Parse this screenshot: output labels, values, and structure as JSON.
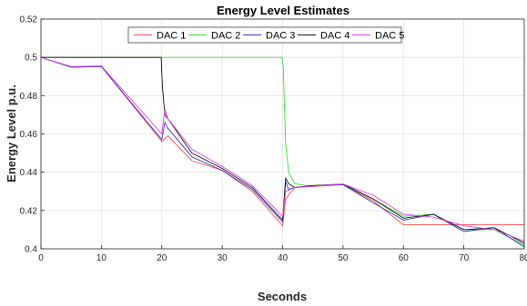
{
  "chart_data": {
    "type": "line",
    "title": "Energy Level Estimates",
    "xlabel": "Seconds",
    "ylabel": "Energy Level p.u.",
    "xlim": [
      0,
      80
    ],
    "ylim": [
      0.4,
      0.52
    ],
    "xticks": [
      "0",
      "10",
      "20",
      "30",
      "40",
      "50",
      "60",
      "70",
      "80"
    ],
    "yticks": [
      "0.4",
      "0.42",
      "0.44",
      "0.46",
      "0.48",
      "0.5",
      "0.52"
    ],
    "grid": true,
    "legend": {
      "position": "top-center",
      "orientation": "horizontal"
    },
    "series": [
      {
        "name": "DAC 1",
        "color": "#ff4d4d",
        "x": [
          0,
          5,
          10,
          20,
          21,
          25,
          30,
          35,
          40,
          40.5,
          42,
          50,
          55,
          60,
          65,
          70,
          75,
          80
        ],
        "y": [
          0.5,
          0.495,
          0.4952,
          0.456,
          0.459,
          0.446,
          0.441,
          0.43,
          0.412,
          0.426,
          0.432,
          0.4335,
          0.425,
          0.4125,
          0.4125,
          0.4125,
          0.4125,
          0.4125
        ]
      },
      {
        "name": "DAC 2",
        "color": "#33e033",
        "x": [
          0,
          5,
          10,
          20,
          25,
          30,
          35,
          39.9,
          40.1,
          40.5,
          41,
          42,
          44,
          50,
          55,
          60,
          65,
          70,
          75,
          80
        ],
        "y": [
          0.5,
          0.5,
          0.5,
          0.5,
          0.5,
          0.5,
          0.5,
          0.5,
          0.495,
          0.455,
          0.44,
          0.434,
          0.433,
          0.4335,
          0.426,
          0.417,
          0.418,
          0.41,
          0.41,
          0.402
        ]
      },
      {
        "name": "DAC 3",
        "color": "#3333cc",
        "x": [
          0,
          5,
          10,
          20,
          20.5,
          21,
          25,
          30,
          35,
          40,
          40.5,
          41,
          42,
          45,
          50,
          55,
          60,
          65,
          70,
          75,
          80
        ],
        "y": [
          0.5,
          0.4948,
          0.4952,
          0.457,
          0.466,
          0.463,
          0.448,
          0.441,
          0.431,
          0.414,
          0.435,
          0.431,
          0.432,
          0.433,
          0.4335,
          0.424,
          0.415,
          0.418,
          0.409,
          0.411,
          0.401
        ]
      },
      {
        "name": "DAC 4",
        "color": "#111111",
        "x": [
          0,
          5,
          10,
          19.9,
          20.1,
          20.5,
          21,
          25,
          30,
          35,
          40,
          40.5,
          41,
          42,
          45,
          50,
          55,
          60,
          65,
          70,
          75,
          80
        ],
        "y": [
          0.5,
          0.5,
          0.5,
          0.5,
          0.485,
          0.47,
          0.468,
          0.45,
          0.442,
          0.432,
          0.415,
          0.437,
          0.434,
          0.432,
          0.433,
          0.4338,
          0.426,
          0.416,
          0.418,
          0.41,
          0.411,
          0.403
        ]
      },
      {
        "name": "DAC 5",
        "color": "#e040e0",
        "x": [
          0,
          5,
          10,
          20,
          20.5,
          21,
          25,
          30,
          35,
          40,
          40.5,
          42,
          50,
          55,
          60,
          65,
          70,
          75,
          80
        ],
        "y": [
          0.5,
          0.4952,
          0.4955,
          0.46,
          0.473,
          0.468,
          0.452,
          0.443,
          0.433,
          0.417,
          0.43,
          0.432,
          0.4338,
          0.428,
          0.418,
          0.4165,
          0.412,
          0.41,
          0.404
        ]
      }
    ]
  }
}
